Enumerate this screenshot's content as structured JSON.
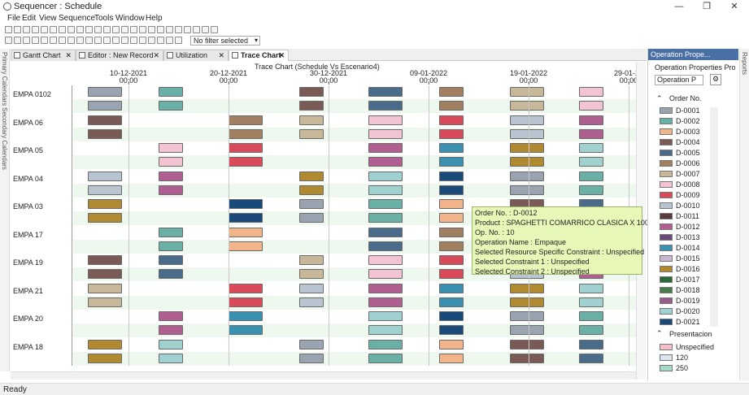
{
  "window": {
    "title": "Sequencer : Schedule",
    "minimize": "—",
    "restore": "❐",
    "close": "✕"
  },
  "menu": [
    "File",
    "Edit",
    "View",
    "Sequence",
    "Tools",
    "Window",
    "Help"
  ],
  "toolbar": {
    "filter_value": "No filter selected"
  },
  "left_tabs": [
    "Primary Calendars",
    "Secondary Calendars"
  ],
  "tabs": [
    {
      "label": "Gantt Chart",
      "close": "✕"
    },
    {
      "label": "Editor : New Record",
      "close": "✕"
    },
    {
      "label": "Utilization",
      "close": "✕"
    },
    {
      "label": "Trace Chart",
      "close": "✕"
    }
  ],
  "chart": {
    "title": "Trace Chart (Schedule Vs Escenario4)",
    "dates": [
      {
        "date": "10-12-2021",
        "time": "00;00"
      },
      {
        "date": "20-12-2021",
        "time": "00;00"
      },
      {
        "date": "30-12-2021",
        "time": "00;00"
      },
      {
        "date": "09-01-2022",
        "time": "00;00"
      },
      {
        "date": "19-01-2022",
        "time": "00;00"
      },
      {
        "date": "29-01-20",
        "time": "00;00"
      }
    ],
    "resources": [
      "EMPA 0102",
      "EMPA 06",
      "EMPA 05",
      "EMPA 04",
      "EMPA 03",
      "EMPA 17",
      "EMPA 19",
      "EMPA 21",
      "EMPA 20",
      "EMPA 18"
    ]
  },
  "tooltip": {
    "order": "Order No. : D-0012",
    "product": "Product : SPAGHETTI COMARRICO CLASICA X 1000G",
    "op_no": "Op. No. : 10",
    "op_name": "Operation Name : Empaque",
    "constraint": "Selected Resource Specific Constraint : Unspecified",
    "c1": "Selected Constraint 1 : Unspecified",
    "c2": "Selected Constraint 2 : Unspecified"
  },
  "right_panel": {
    "header": "Operation Prope...",
    "subtitle": "Operation Properties Pro",
    "dropdown": "Operation P",
    "order_section": "Order No.",
    "orders": [
      {
        "label": "D-0001",
        "color": "#9aa3b0"
      },
      {
        "label": "D-0002",
        "color": "#6ab0a6"
      },
      {
        "label": "D-0003",
        "color": "#f2b48a"
      },
      {
        "label": "D-0004",
        "color": "#7a5a55"
      },
      {
        "label": "D-0005",
        "color": "#4a6b8a"
      },
      {
        "label": "D-0006",
        "color": "#a08060"
      },
      {
        "label": "D-0007",
        "color": "#c8b89a"
      },
      {
        "label": "D-0008",
        "color": "#f2c4d4"
      },
      {
        "label": "D-0009",
        "color": "#d94a5a"
      },
      {
        "label": "D-0010",
        "color": "#b8c4d0"
      },
      {
        "label": "D-0011",
        "color": "#5a3a3a"
      },
      {
        "label": "D-0012",
        "color": "#b06090"
      },
      {
        "label": "D-0013",
        "color": "#6a4a7a"
      },
      {
        "label": "D-0014",
        "color": "#3a90b0"
      },
      {
        "label": "D-0015",
        "color": "#c8b8d0"
      },
      {
        "label": "D-0016",
        "color": "#b08a30"
      },
      {
        "label": "D-0017",
        "color": "#2a6a3a"
      },
      {
        "label": "D-0018",
        "color": "#4a7a4a"
      },
      {
        "label": "D-0019",
        "color": "#9a5a8a"
      },
      {
        "label": "D-0020",
        "color": "#a0d0d0"
      },
      {
        "label": "D-0021",
        "color": "#1a4a7a"
      }
    ],
    "presentation_section": "Presentacion",
    "presentation": [
      {
        "label": "Unspecified",
        "color": "#f4c0c8"
      },
      {
        "label": "120",
        "color": "#d8e4f0"
      },
      {
        "label": "250",
        "color": "#a8d8c8"
      }
    ]
  },
  "right_tab": "Reports",
  "status": "Ready"
}
